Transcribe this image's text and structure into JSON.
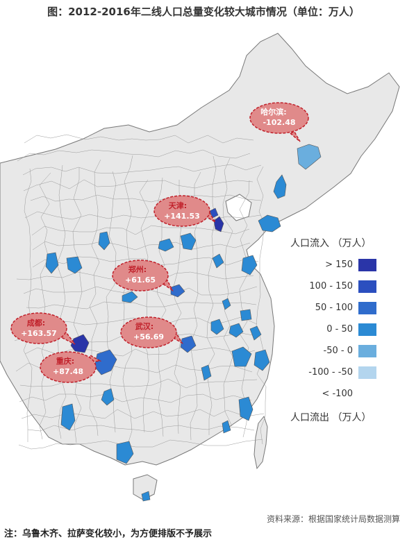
{
  "title": "图：2012-2016年二线人口总量变化较大城市情况（单位：万人）",
  "legend": {
    "header_label": "人口流入",
    "header_unit": "（万人）",
    "footer_label": "人口流出",
    "footer_unit": "（万人）",
    "items": [
      {
        "label": "> 150",
        "color": "#2a35a8"
      },
      {
        "label": "100 - 150",
        "color": "#2b4fbf"
      },
      {
        "label": "50 - 100",
        "color": "#2f6ccc"
      },
      {
        "label": "0 - 50",
        "color": "#2b8ad4"
      },
      {
        "label": "-50 - 0",
        "color": "#6aaede"
      },
      {
        "label": "-100 - -50",
        "color": "#b3d5ee"
      },
      {
        "label": "< -100",
        "color": ""
      }
    ]
  },
  "callouts": [
    {
      "city": "哈尔滨:",
      "value": "-102.48"
    },
    {
      "city": "天津:",
      "value": "+141.53"
    },
    {
      "city": "郑州:",
      "value": "+61.65"
    },
    {
      "city": "成都:",
      "value": "+163.57"
    },
    {
      "city": "武汉:",
      "value": "+56.69"
    },
    {
      "city": "重庆:",
      "value": "+87.48"
    }
  ],
  "colors": {
    "land": "#e8e8e8",
    "border": "#777777",
    "bubble_fill": "#e08a8a",
    "bubble_stroke": "#c0202a",
    "bubble_text": "#c0202a"
  },
  "source": "资料来源：根据国家统计局数据测算",
  "note": "注：乌鲁木齐、拉萨变化较小，为方便排版不予展示"
}
